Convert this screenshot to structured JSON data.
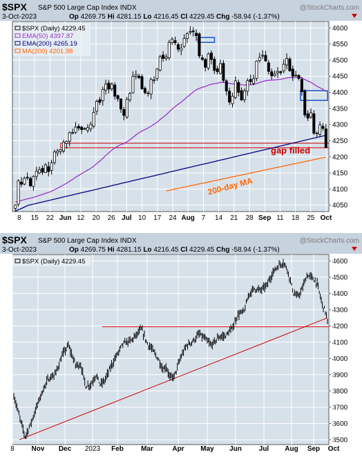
{
  "colors": {
    "header_bg": "#c7d2df",
    "plot_bg": "#d7e1ea",
    "grid": "#ffffff",
    "candle": "#000000",
    "ema50": "#9933cc",
    "ema200": "#000080",
    "ma200": "#ff6600",
    "annotation": "#cc0000",
    "box": "#1155cc",
    "trend": "#cc0000",
    "watermark": "#7a7a7a"
  },
  "chart_data": [
    {
      "type": "candlestick",
      "symbol": "$SPX",
      "name": "S&P 500 Large Cap Index",
      "exchange": "INDX",
      "date": "3-Oct-2023",
      "ohlc_text": {
        "op": "4269.75",
        "hi": "4281.15",
        "lo": "4216.45",
        "cl": "4229.45",
        "chg": "-58.94 (-1.37%)"
      },
      "ohlc_labels": {
        "op": "Op",
        "hi": "Hi",
        "lo": "Lo",
        "cl": "Cl",
        "chg": "Chg"
      },
      "watermark": "@StockCharts.com",
      "legend": [
        {
          "label": "$SPX (Daily) 4229.45",
          "color": "#000000"
        },
        {
          "label": "EMA(50) 4397.87",
          "color": "#9933cc"
        },
        {
          "label": "EMA(200) 4265.19",
          "color": "#000080"
        },
        {
          "label": "MA(200) 4201.98",
          "color": "#ff6600"
        }
      ],
      "ylim": [
        4030,
        4620
      ],
      "y_ticks": [
        4050,
        4100,
        4150,
        4200,
        4250,
        4300,
        4350,
        4400,
        4450,
        4500,
        4550,
        4600
      ],
      "x_ticks": [
        "8",
        "15",
        "22",
        "Jun",
        "12",
        "20",
        "26",
        "Jul",
        "10",
        "17",
        "24",
        "Aug",
        "7",
        "14",
        "21",
        "28",
        "Sep",
        "11",
        "18",
        "25",
        "Oct"
      ],
      "closes": [
        4050,
        4125,
        4115,
        4133,
        4136,
        4110,
        4139,
        4155,
        4160,
        4152,
        4175,
        4154,
        4181,
        4215,
        4218,
        4222,
        4245,
        4248,
        4275,
        4275,
        4292,
        4289,
        4284,
        4286,
        4290,
        4300,
        4338,
        4372,
        4369,
        4409,
        4426,
        4410,
        4425,
        4388,
        4380,
        4348,
        4328,
        4378,
        4396,
        4450,
        4455,
        4445,
        4411,
        4399,
        4398,
        4440,
        4439,
        4472,
        4510,
        4505,
        4510,
        4555,
        4565,
        4554,
        4534,
        4537,
        4567,
        4582,
        4589,
        4588,
        4576,
        4513,
        4502,
        4478,
        4519,
        4502,
        4468,
        4464,
        4489,
        4437,
        4404,
        4370,
        4388,
        4436,
        4400,
        4376,
        4405,
        4436,
        4433,
        4442,
        4497,
        4508,
        4515,
        4497,
        4465,
        4451,
        4457,
        4465,
        4461,
        4487,
        4505,
        4467,
        4450,
        4453,
        4443,
        4402,
        4330,
        4320,
        4337,
        4273,
        4274,
        4299,
        4288,
        4229
      ],
      "annotations": [
        {
          "text": "gap filled",
          "color": "#cc0000"
        },
        {
          "text": "200-day MA",
          "color": "#ff6600"
        }
      ]
    },
    {
      "type": "line",
      "symbol": "$SPX",
      "name": "S&P 500 Large Cap Index",
      "exchange": "INDX",
      "date": "3-Oct-2023",
      "ohlc_text": {
        "op": "4269.75",
        "hi": "4281.15",
        "lo": "4216.45",
        "cl": "4229.45",
        "chg": "-58.94 (-1.37%)"
      },
      "ohlc_labels": {
        "op": "Op",
        "hi": "Hi",
        "lo": "Lo",
        "cl": "Cl",
        "chg": "Chg"
      },
      "watermark": "@StockCharts.com",
      "legend": [
        {
          "label": "$SPX (Daily) 4229.45",
          "color": "#000000"
        }
      ],
      "ylim": [
        3470,
        4640
      ],
      "y_ticks": [
        3500,
        3600,
        3700,
        3800,
        3900,
        4000,
        4100,
        4200,
        4300,
        4400,
        4500,
        4600
      ],
      "x_ticks": [
        "8",
        "Nov",
        "Dec",
        "2023",
        "Feb",
        "Mar",
        "Apr",
        "May",
        "Jun",
        "Jul",
        "Aug",
        "Sep",
        "Oct"
      ],
      "anchors": [
        [
          0,
          3770
        ],
        [
          6,
          3630
        ],
        [
          11,
          3520
        ],
        [
          16,
          3590
        ],
        [
          26,
          3770
        ],
        [
          33,
          3870
        ],
        [
          40,
          3900
        ],
        [
          48,
          4030
        ],
        [
          53,
          4080
        ],
        [
          60,
          3960
        ],
        [
          65,
          3960
        ],
        [
          70,
          3830
        ],
        [
          75,
          3840
        ],
        [
          80,
          3900
        ],
        [
          84,
          3840
        ],
        [
          88,
          3860
        ],
        [
          96,
          3970
        ],
        [
          106,
          4090
        ],
        [
          114,
          4110
        ],
        [
          120,
          4150
        ],
        [
          124,
          4180
        ],
        [
          130,
          4090
        ],
        [
          134,
          4060
        ],
        [
          141,
          3990
        ],
        [
          145,
          3930
        ],
        [
          148,
          3950
        ],
        [
          152,
          3880
        ],
        [
          156,
          3890
        ],
        [
          162,
          4000
        ],
        [
          168,
          4080
        ],
        [
          175,
          4110
        ],
        [
          180,
          4150
        ],
        [
          186,
          4120
        ],
        [
          192,
          4080
        ],
        [
          199,
          4130
        ],
        [
          206,
          4140
        ],
        [
          212,
          4180
        ],
        [
          218,
          4270
        ],
        [
          224,
          4290
        ],
        [
          229,
          4400
        ],
        [
          234,
          4430
        ],
        [
          240,
          4420
        ],
        [
          246,
          4450
        ],
        [
          252,
          4530
        ],
        [
          257,
          4570
        ],
        [
          262,
          4590
        ],
        [
          266,
          4550
        ],
        [
          272,
          4400
        ],
        [
          276,
          4380
        ],
        [
          280,
          4420
        ],
        [
          285,
          4510
        ],
        [
          290,
          4500
        ],
        [
          295,
          4460
        ],
        [
          300,
          4330
        ],
        [
          303,
          4290
        ],
        [
          305,
          4230
        ]
      ],
      "annotations": []
    }
  ]
}
